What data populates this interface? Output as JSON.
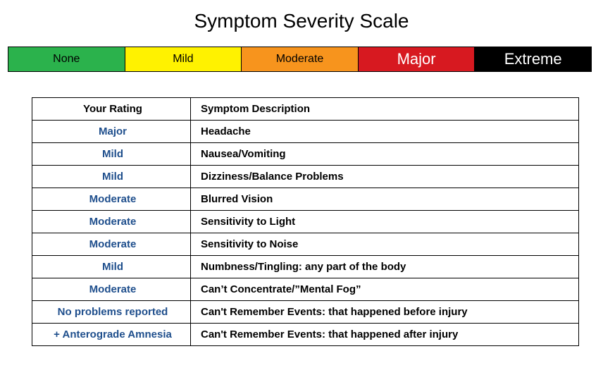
{
  "title": "Symptom Severity Scale",
  "scale": {
    "levels": [
      {
        "label": "None",
        "bg": "#2bb24c",
        "fg": "#000000",
        "fontSize": 16,
        "fontWeight": "400"
      },
      {
        "label": "Mild",
        "bg": "#fff200",
        "fg": "#000000",
        "fontSize": 16,
        "fontWeight": "400"
      },
      {
        "label": "Moderate",
        "bg": "#f7941d",
        "fg": "#000000",
        "fontSize": 16,
        "fontWeight": "400"
      },
      {
        "label": "Major",
        "bg": "#d71920",
        "fg": "#ffffff",
        "fontSize": 22,
        "fontWeight": "400"
      },
      {
        "label": "Extreme",
        "bg": "#000000",
        "fg": "#ffffff",
        "fontSize": 22,
        "fontWeight": "400"
      }
    ]
  },
  "table": {
    "columns": [
      "Your Rating",
      "Symptom Description"
    ],
    "rows": [
      {
        "rating": "Major",
        "desc": "Headache",
        "ratingClass": "rating-text"
      },
      {
        "rating": "Mild",
        "desc": "Nausea/Vomiting",
        "ratingClass": "rating-text"
      },
      {
        "rating": "Mild",
        "desc": "Dizziness/Balance Problems",
        "ratingClass": "rating-text"
      },
      {
        "rating": "Moderate",
        "desc": "Blurred Vision",
        "ratingClass": "rating-text"
      },
      {
        "rating": "Moderate",
        "desc": "Sensitivity to Light",
        "ratingClass": "rating-text"
      },
      {
        "rating": "Moderate",
        "desc": "Sensitivity to Noise",
        "ratingClass": "rating-text"
      },
      {
        "rating": "Mild",
        "desc": "Numbness/Tingling: any part of the body",
        "ratingClass": "rating-text"
      },
      {
        "rating": "Moderate",
        "desc": "Can’t Concentrate/”Mental Fog”",
        "ratingClass": "rating-text"
      },
      {
        "rating": "No problems reported",
        "desc": "Can't Remember Events: that happened before injury",
        "ratingClass": "note-text"
      },
      {
        "rating": "+ Anterograde Amnesia",
        "desc": "Can't Remember Events: that happened after injury",
        "ratingClass": "note-text"
      }
    ]
  },
  "colors": {
    "rating_text": "#1e4e8c",
    "border": "#000000",
    "background": "#ffffff"
  }
}
